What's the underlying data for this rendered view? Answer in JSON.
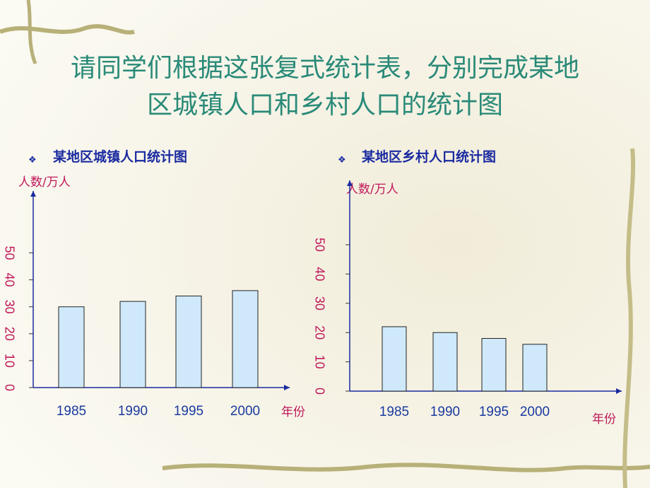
{
  "slide_title": [
    "请同学们根据这张复式统计表，分别完成某地",
    "区城镇人口和乡村人口的统计图"
  ],
  "chart_data": [
    {
      "type": "bar",
      "title": "某地区城镇人口统计图",
      "y_label": "人数/万人",
      "x_label": "年份",
      "categories": [
        "1985",
        "1990",
        "1995",
        "2000"
      ],
      "values": [
        30,
        32,
        34,
        36
      ],
      "color": "#cfe9fb",
      "ylim": [
        0,
        73
      ],
      "yticks": [
        0,
        10,
        20,
        30,
        40,
        50
      ]
    },
    {
      "type": "bar",
      "title": "某地区乡村人口统计图",
      "y_label": "人数/万人",
      "x_label": "年份",
      "categories": [
        "1985",
        "1990",
        "1995",
        "2000"
      ],
      "values": [
        22,
        20,
        18,
        16
      ],
      "color": "#cfe9fb",
      "ylim": [
        0,
        72
      ],
      "yticks": [
        0,
        10,
        20,
        30,
        40,
        50
      ]
    }
  ]
}
